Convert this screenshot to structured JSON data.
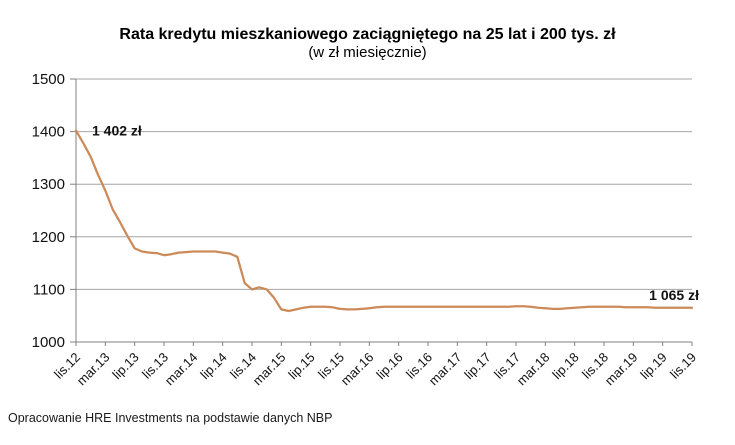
{
  "source_note": "Opracowanie HRE Investments na podstawie danych NBP",
  "colors": {
    "line": "#CC8A59",
    "grid": "#A6A6A6",
    "axis": "#808080",
    "text": "#111111",
    "background": "#FFFFFF"
  },
  "chart_data": {
    "type": "line",
    "title": "Rata kredytu mieszkaniowego zaciągniętego na 25 lat i 200 tys. zł",
    "subtitle": "(w zł miesięcznie)",
    "xlabel": "",
    "ylabel": "",
    "ylim": [
      1000,
      1500
    ],
    "y_ticks": [
      1000,
      1100,
      1200,
      1300,
      1400,
      1500
    ],
    "grid": true,
    "legend": false,
    "x_unit": "month",
    "x_start": "lis.12",
    "x_end": "lis.19",
    "x_tick_interval": 4,
    "x_tick_labels": [
      "lis.12",
      "mar.13",
      "lip.13",
      "lis.13",
      "mar.14",
      "lip.14",
      "lis.14",
      "mar.15",
      "lip.15",
      "lis.15",
      "mar.16",
      "lip.16",
      "lis.16",
      "mar.17",
      "lip.17",
      "lis.17",
      "mar.18",
      "lip.18",
      "lis.18",
      "mar.19",
      "lip.19",
      "lis.19"
    ],
    "values": [
      1402,
      1378,
      1352,
      1318,
      1288,
      1252,
      1228,
      1202,
      1178,
      1172,
      1170,
      1169,
      1165,
      1167,
      1170,
      1171,
      1172,
      1172,
      1172,
      1172,
      1170,
      1168,
      1162,
      1112,
      1100,
      1104,
      1100,
      1084,
      1062,
      1059,
      1062,
      1065,
      1067,
      1067,
      1067,
      1066,
      1063,
      1062,
      1062,
      1063,
      1064,
      1066,
      1067,
      1067,
      1067,
      1067,
      1067,
      1067,
      1067,
      1067,
      1067,
      1067,
      1067,
      1067,
      1067,
      1067,
      1067,
      1067,
      1067,
      1067,
      1068,
      1068,
      1067,
      1065,
      1064,
      1063,
      1063,
      1064,
      1065,
      1066,
      1067,
      1067,
      1067,
      1067,
      1067,
      1066,
      1066,
      1066,
      1066,
      1065,
      1065,
      1065,
      1065,
      1065,
      1065
    ],
    "annotations": [
      {
        "text": "1 402 zł",
        "point_index": 0,
        "value": 1402
      },
      {
        "text": "1 065 zł",
        "point_index": 84,
        "value": 1065
      }
    ]
  }
}
